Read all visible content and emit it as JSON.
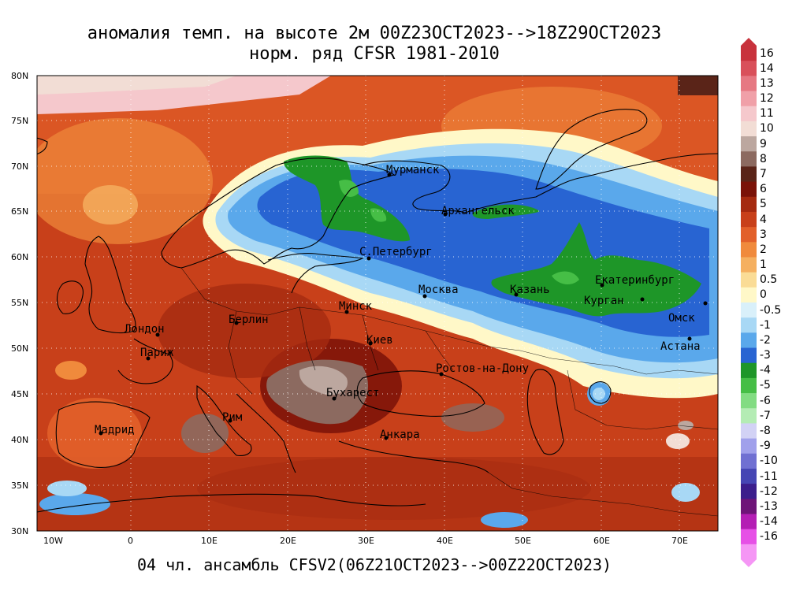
{
  "title_line1": "аномалия темп. на высоте 2м 00Z23OCT2023-->18Z29OCT2023",
  "title_line2": "норм. ряд CFSR 1981-2010",
  "subtitle": "04 чл. ансамбль CFSV2(06Z21OCT2023-->00Z22OCT2023)",
  "lat_ticks": [
    "80N",
    "75N",
    "70N",
    "65N",
    "60N",
    "55N",
    "50N",
    "45N",
    "40N",
    "35N",
    "30N"
  ],
  "lon_ticks": [
    "10W",
    "0",
    "10E",
    "20E",
    "30E",
    "40E",
    "50E",
    "60E",
    "70E"
  ],
  "colorbar_labels": [
    "16",
    "14",
    "13",
    "12",
    "11",
    "10",
    "9",
    "8",
    "7",
    "6",
    "5",
    "4",
    "3",
    "2",
    "1",
    "0.5",
    "0",
    "-0.5",
    "-1",
    "-2",
    "-3",
    "-4",
    "-5",
    "-6",
    "-7",
    "-8",
    "-9",
    "-10",
    "-11",
    "-12",
    "-13",
    "-14",
    "-16"
  ],
  "colorbar_colors": [
    "#c8323c",
    "#d9505a",
    "#e67882",
    "#f0a0a8",
    "#f5c8cc",
    "#f2ddd5",
    "#bca79f",
    "#8c6a60",
    "#5a2418",
    "#7a1208",
    "#a52a10",
    "#c8401a",
    "#e2602a",
    "#f08a3c",
    "#f5b060",
    "#fadc96",
    "#fff8c8",
    "#d9f0fa",
    "#a8d8f5",
    "#5aa8eb",
    "#2864d2",
    "#1e9628",
    "#46be46",
    "#82dc82",
    "#b4ecb4",
    "#d2d2f5",
    "#a0a0eb",
    "#7070d2",
    "#4646b4",
    "#3c1e8c",
    "#6e1478",
    "#b41eb4",
    "#e650e6",
    "#f596f5"
  ],
  "cities": [
    {
      "name": "Мурманск"
    },
    {
      "name": "Архангельск"
    },
    {
      "name": "С.Петербург"
    },
    {
      "name": "Москва"
    },
    {
      "name": "Казань"
    },
    {
      "name": "Екатеринбург"
    },
    {
      "name": "Курган"
    },
    {
      "name": "Омск"
    },
    {
      "name": "Астана"
    },
    {
      "name": "Минск"
    },
    {
      "name": "Берлин"
    },
    {
      "name": "Лондон"
    },
    {
      "name": "Париж"
    },
    {
      "name": "Киев"
    },
    {
      "name": "Ростов-на-Дону"
    },
    {
      "name": "Бухарест"
    },
    {
      "name": "Рим"
    },
    {
      "name": "Мадрид"
    },
    {
      "name": "Анкара"
    }
  ]
}
